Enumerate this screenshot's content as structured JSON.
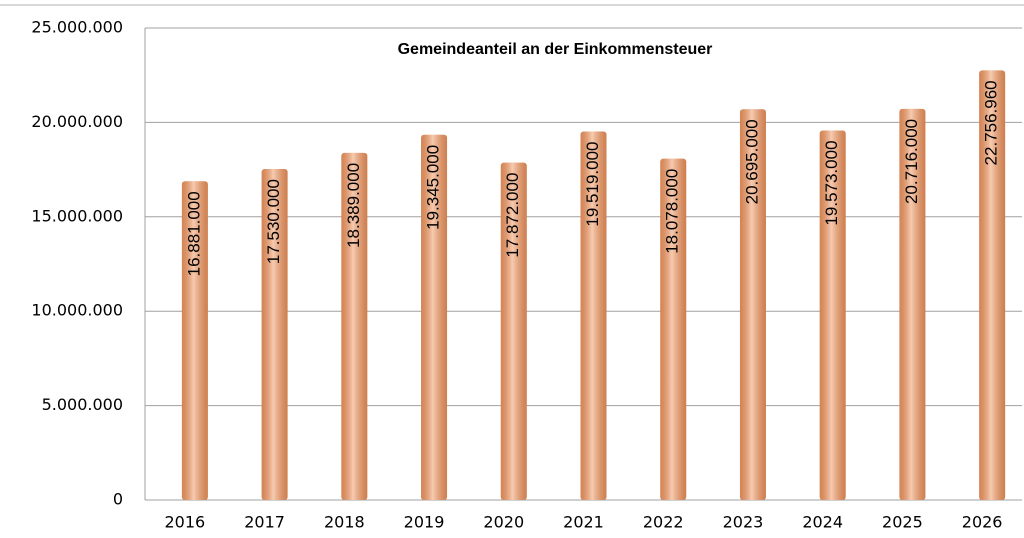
{
  "chart_data": {
    "type": "bar",
    "title": "Gemeindeanteil an der Einkommensteuer",
    "categories": [
      "2016",
      "2017",
      "2018",
      "2019",
      "2020",
      "2021",
      "2022",
      "2023",
      "2024",
      "2025",
      "2026"
    ],
    "values": [
      16881000,
      17530000,
      18389000,
      19345000,
      17872000,
      19519000,
      18078000,
      20695000,
      19573000,
      20716000,
      22756960
    ],
    "value_labels": [
      "16.881.000",
      "17.530.000",
      "18.389.000",
      "19.345.000",
      "17.872.000",
      "19.519.000",
      "18.078.000",
      "20.695.000",
      "19.573.000",
      "20.716.000",
      "22.756.960"
    ],
    "color": "#f0a070",
    "ylim": [
      0,
      25000000
    ],
    "yticks": [
      0,
      {
        "value": 5000000,
        "label": "5.000.000"
      },
      {
        "value": 10000000,
        "label": "10.000.000"
      },
      {
        "value": 15000000,
        "label": "15.000.000"
      },
      {
        "value": 20000000,
        "label": "20.000.000"
      },
      {
        "value": 25000000,
        "label": "25.000.000"
      }
    ],
    "grid": true
  }
}
